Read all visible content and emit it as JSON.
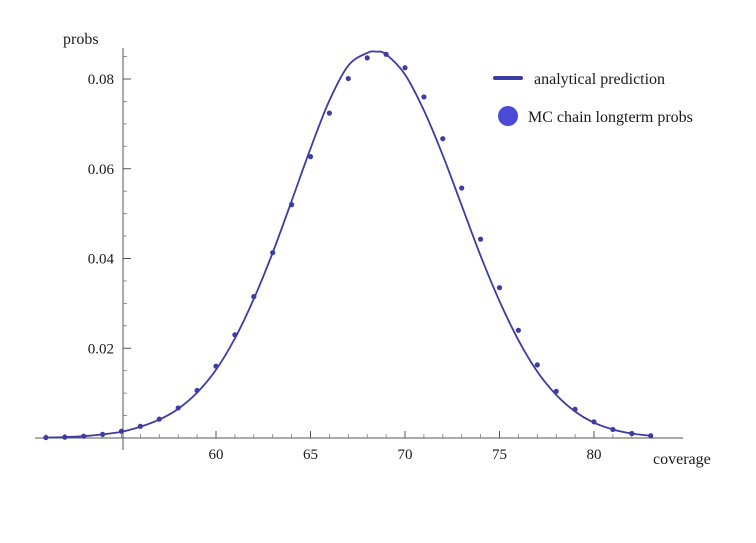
{
  "chart_data": {
    "type": "line",
    "title": "",
    "xlabel": "coverage",
    "ylabel": "probs",
    "xlim": [
      50,
      83
    ],
    "ylim": [
      0,
      0.09
    ],
    "x_ticks": [
      60,
      65,
      70,
      75,
      80
    ],
    "x_tick_labels": [
      "60",
      "65",
      "70",
      "75",
      "80"
    ],
    "y_ticks": [
      0.02,
      0.04,
      0.06,
      0.08
    ],
    "y_tick_labels": [
      "0.02",
      "0.04",
      "0.06",
      "0.08"
    ],
    "grid": false,
    "legend_position": "top-right",
    "color": "#3c3ca4",
    "series": [
      {
        "name": "analytical prediction",
        "kind": "line",
        "x": [
          51,
          52,
          53,
          54,
          55,
          56,
          57,
          58,
          59,
          60,
          61,
          62,
          63,
          64,
          65,
          66,
          67,
          68,
          68.5,
          69,
          70,
          71,
          72,
          73,
          74,
          75,
          76,
          77,
          78,
          79,
          80,
          81,
          82,
          83
        ],
        "y": [
          0.0001,
          0.0002,
          0.0004,
          0.0008,
          0.0014,
          0.0025,
          0.0041,
          0.0065,
          0.0101,
          0.0152,
          0.0222,
          0.031,
          0.0413,
          0.0528,
          0.0645,
          0.0752,
          0.083,
          0.0858,
          0.0861,
          0.0855,
          0.081,
          0.073,
          0.063,
          0.0518,
          0.0406,
          0.0305,
          0.0218,
          0.0148,
          0.0096,
          0.0059,
          0.0034,
          0.0019,
          0.001,
          0.0005
        ]
      },
      {
        "name": "MC chain longterm probs",
        "kind": "scatter",
        "x": [
          51,
          52,
          53,
          54,
          55,
          56,
          57,
          58,
          59,
          60,
          61,
          62,
          63,
          64,
          65,
          66,
          67,
          68,
          69,
          70,
          71,
          72,
          73,
          74,
          75,
          76,
          77,
          78,
          79,
          80,
          81,
          82,
          83
        ],
        "y": [
          0.0001,
          0.0002,
          0.0004,
          0.0008,
          0.0015,
          0.0026,
          0.0042,
          0.0067,
          0.0106,
          0.016,
          0.023,
          0.0315,
          0.0413,
          0.052,
          0.0627,
          0.0724,
          0.0801,
          0.0847,
          0.0855,
          0.0825,
          0.076,
          0.0667,
          0.0557,
          0.0443,
          0.0335,
          0.024,
          0.0163,
          0.0104,
          0.0064,
          0.0036,
          0.0019,
          0.001,
          0.0005
        ]
      }
    ]
  }
}
